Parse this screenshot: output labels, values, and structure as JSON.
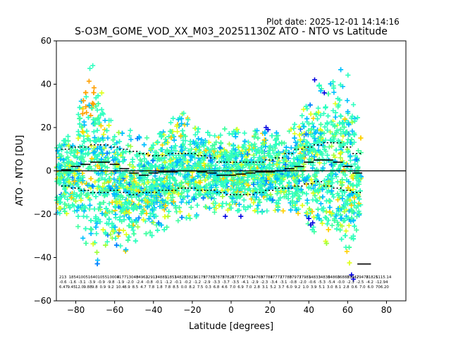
{
  "header": {
    "plot_date": "Plot date: 2025-12-01 14:14:16",
    "title": "S-O3M_GOME_VOD_XX_M03_20251130Z ATO - NTO vs Latitude"
  },
  "chart_data": {
    "type": "scatter",
    "title": "S-O3M_GOME_VOD_XX_M03_20251130Z ATO - NTO vs Latitude",
    "xlabel": "Latitude [degrees]",
    "ylabel": "ATO - NTO [DU]",
    "xlim": [
      -90,
      90
    ],
    "ylim": [
      -60,
      60
    ],
    "xticks": [
      -80,
      -60,
      -40,
      -20,
      0,
      20,
      40,
      60,
      80
    ],
    "yticks": [
      -60,
      -40,
      -20,
      0,
      20,
      40,
      60
    ],
    "zero_line": 0,
    "colors": [
      "#30ffc0",
      "#40ffa0",
      "#00c0ff",
      "#e0ff20",
      "#ffd000",
      "#ffa000",
      "#0080ff",
      "#a0ff40"
    ],
    "bins": {
      "lat": [
        -85,
        -80,
        -75,
        -70,
        -65,
        -60,
        -55,
        -50,
        -45,
        -40,
        -35,
        -30,
        -25,
        -20,
        -15,
        -10,
        -5,
        0,
        5,
        10,
        15,
        20,
        25,
        30,
        35,
        40,
        45,
        50,
        55,
        60,
        65
      ],
      "mean": [
        0.5,
        2,
        3,
        4,
        4,
        3,
        1,
        -1,
        -2,
        -1,
        -0.5,
        -0.5,
        0,
        0,
        -0.5,
        -1,
        -2,
        -2,
        -1.5,
        -1,
        -0.5,
        -0.5,
        0,
        1,
        2,
        4,
        5,
        5,
        4,
        2,
        -1
      ],
      "std_hi": [
        10,
        11,
        11,
        12,
        12,
        11,
        10,
        9,
        8,
        7,
        7,
        8,
        8,
        8,
        7,
        6,
        4,
        4,
        4,
        4,
        4,
        5,
        6,
        8,
        10,
        11,
        12,
        13,
        13,
        11,
        8
      ],
      "std_lo": [
        -7,
        -8,
        -9,
        -10,
        -10,
        -9,
        -10,
        -11,
        -10,
        -10,
        -9,
        -9,
        -8,
        -8,
        -9,
        -9,
        -10,
        -11,
        -11,
        -11,
        -10,
        -9,
        -8,
        -8,
        -7,
        -6,
        -5,
        -7,
        -8,
        -9,
        -10
      ],
      "spread_hi": [
        15,
        20,
        45,
        50,
        30,
        22,
        20,
        18,
        18,
        18,
        20,
        25,
        28,
        22,
        18,
        18,
        20,
        20,
        20,
        18,
        20,
        18,
        18,
        20,
        25,
        35,
        40,
        38,
        50,
        45,
        25
      ],
      "spread_lo": [
        -20,
        -25,
        -35,
        -45,
        -40,
        -35,
        -38,
        -35,
        -30,
        -30,
        -28,
        -25,
        -22,
        -22,
        -20,
        -20,
        -18,
        -20,
        -20,
        -18,
        -20,
        -20,
        -18,
        -20,
        -22,
        -28,
        -30,
        -35,
        -40,
        -55,
        -30
      ]
    },
    "annotations": {
      "row1": [
        "213",
        "1854",
        "1005",
        "1640",
        "1055",
        "10004",
        "3177",
        "13040",
        "34962",
        "32917",
        "34881",
        "31851",
        "34828",
        "33821",
        "36179",
        "37781",
        "37878",
        "37826",
        "37777",
        "37761",
        "34769",
        "37784",
        "37777",
        "37780",
        "37977",
        "37981",
        "34833",
        "34836",
        "34868",
        "36888",
        "35947",
        "29478",
        "21825",
        "1115.14"
      ],
      "row2": [
        "-0.6",
        "-1.6",
        "-3.1",
        "-3.9",
        "-0.9",
        "-9.8",
        "-1.9",
        "-2.0",
        "-2.4",
        "-0.8",
        "-0.1",
        "-1.2",
        "-0.1",
        "-0.2",
        "-1.2",
        "-2.9",
        "-3.3",
        "-3.7",
        "-3.5",
        "-4.1",
        "-2.9",
        "-2.3",
        "-3.4",
        "-3.1",
        "-0.8",
        "-2.0",
        "-0.6",
        "-5.3",
        "-5.4",
        "-0.0",
        "-2.3",
        "-2.5",
        "-4.2",
        "-12.94"
      ],
      "row3": [
        "6.47",
        "9.45",
        "12.0",
        "9.88",
        "9.8",
        "0.9",
        "9.2",
        "10.4",
        "8.9",
        "8.5",
        "4.7",
        "7.8",
        "1.8",
        "7.8",
        "8.5",
        "0.0",
        "8.2",
        "7.5",
        "0.3",
        "6.8",
        "4.6",
        "7.0",
        "6.9",
        "7.0",
        "2.8",
        "3.1",
        "5.2",
        "3.7",
        "6.0",
        "9.2",
        "1.0",
        "3.9",
        "5.1",
        "3.0",
        "8.1",
        "2.8",
        "0.6",
        "7.0",
        "6.0",
        "706.20"
      ]
    }
  }
}
